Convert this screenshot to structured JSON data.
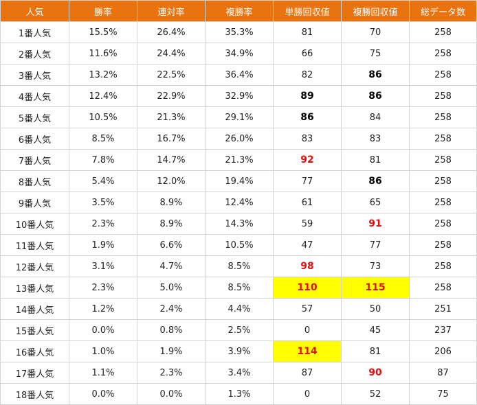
{
  "headers": [
    "人気",
    "勝率",
    "連対率",
    "複勝率",
    "単勝回収値",
    "複勝回収値",
    "総データ数"
  ],
  "rows": [
    [
      "1番人気",
      "15.5%",
      "26.4%",
      "35.3%",
      "81",
      "70",
      "258"
    ],
    [
      "2番人気",
      "11.6%",
      "24.4%",
      "34.9%",
      "66",
      "75",
      "258"
    ],
    [
      "3番人気",
      "13.2%",
      "22.5%",
      "36.4%",
      "82",
      "86",
      "258"
    ],
    [
      "4番人気",
      "12.4%",
      "22.9%",
      "32.9%",
      "89",
      "86",
      "258"
    ],
    [
      "5番人気",
      "10.5%",
      "21.3%",
      "29.1%",
      "86",
      "84",
      "258"
    ],
    [
      "6番人気",
      "8.5%",
      "16.7%",
      "26.0%",
      "83",
      "83",
      "258"
    ],
    [
      "7番人気",
      "7.8%",
      "14.7%",
      "21.3%",
      "92",
      "81",
      "258"
    ],
    [
      "8番人気",
      "5.4%",
      "12.0%",
      "19.4%",
      "77",
      "86",
      "258"
    ],
    [
      "9番人気",
      "3.5%",
      "8.9%",
      "12.4%",
      "61",
      "65",
      "258"
    ],
    [
      "10番人気",
      "2.3%",
      "8.9%",
      "14.3%",
      "59",
      "91",
      "258"
    ],
    [
      "11番人気",
      "1.9%",
      "6.6%",
      "10.5%",
      "47",
      "77",
      "258"
    ],
    [
      "12番人気",
      "3.1%",
      "4.7%",
      "8.5%",
      "98",
      "73",
      "258"
    ],
    [
      "13番人気",
      "2.3%",
      "5.0%",
      "8.5%",
      "110",
      "115",
      "258"
    ],
    [
      "14番人気",
      "1.2%",
      "2.4%",
      "4.4%",
      "57",
      "50",
      "251"
    ],
    [
      "15番人気",
      "0.0%",
      "0.8%",
      "2.5%",
      "0",
      "45",
      "237"
    ],
    [
      "16番人気",
      "1.0%",
      "1.9%",
      "3.9%",
      "114",
      "81",
      "206"
    ],
    [
      "17番人気",
      "1.1%",
      "2.3%",
      "3.4%",
      "87",
      "90",
      "87"
    ],
    [
      "18番人気",
      "0.0%",
      "0.0%",
      "1.3%",
      "0",
      "52",
      "75"
    ]
  ],
  "highlights": {
    "bold": [
      [
        2,
        5
      ],
      [
        3,
        4
      ],
      [
        3,
        5
      ],
      [
        4,
        4
      ],
      [
        7,
        5
      ]
    ],
    "red": [
      [
        6,
        4
      ],
      [
        9,
        5
      ],
      [
        11,
        4
      ],
      [
        12,
        4
      ],
      [
        12,
        5
      ],
      [
        15,
        4
      ],
      [
        16,
        5
      ]
    ],
    "yellow_background": [
      [
        12,
        4
      ],
      [
        12,
        5
      ],
      [
        15,
        4
      ]
    ],
    "colors": {
      "header_bg": "#e8730f",
      "header_text": "#ffffff",
      "red_text": "#e01010",
      "yellow_bg": "#ffff00",
      "border": "#d3d3d3"
    }
  }
}
